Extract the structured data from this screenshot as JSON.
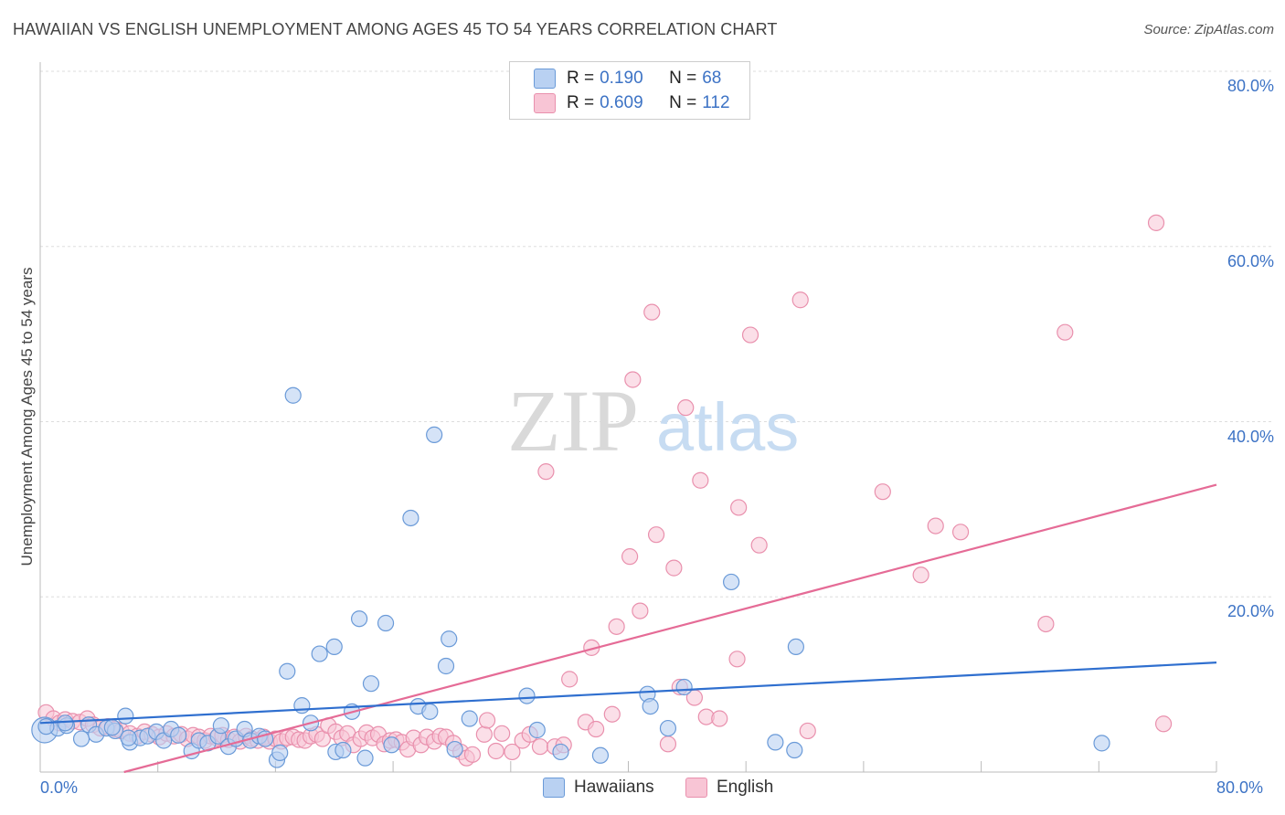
{
  "title": "HAWAIIAN VS ENGLISH UNEMPLOYMENT AMONG AGES 45 TO 54 YEARS CORRELATION CHART",
  "source": "Source: ZipAtlas.com",
  "colors": {
    "hawaiians_fill": "#b9d1f2",
    "hawaiians_stroke": "#6a9ad8",
    "hawaiians_line": "#2f6fcf",
    "english_fill": "#f8c5d5",
    "english_stroke": "#e990ad",
    "english_line": "#e56b96",
    "accent": "#3d73c5"
  },
  "legend": {
    "rows": [
      {
        "r_label": "R =",
        "r_value": "0.190",
        "n_label": "N =",
        "n_value": "68"
      },
      {
        "r_label": "R =",
        "r_value": "0.609",
        "n_label": "N =",
        "n_value": "112"
      }
    ]
  },
  "watermark": {
    "zip": "ZIP",
    "atlas": "atlas"
  },
  "chart_data": {
    "type": "scatter",
    "title": "HAWAIIAN VS ENGLISH UNEMPLOYMENT AMONG AGES 45 TO 54 YEARS CORRELATION CHART",
    "xlabel": "",
    "ylabel": "Unemployment Among Ages 45 to 54 years",
    "xlim": [
      0,
      80
    ],
    "ylim": [
      0,
      80
    ],
    "x_tick_labels": [
      "0.0%",
      "80.0%"
    ],
    "y_tick_labels": [
      "20.0%",
      "40.0%",
      "60.0%",
      "80.0%"
    ],
    "y_ticks": [
      20,
      40,
      60,
      80
    ],
    "grid": true,
    "legend_position": "top-center",
    "series": [
      {
        "name": "Hawaiians",
        "trend": {
          "x": [
            0,
            80
          ],
          "y": [
            5.6,
            12.5
          ]
        },
        "points": [
          [
            0.3,
            4.8
          ],
          [
            1.2,
            5.0
          ],
          [
            1.8,
            5.3
          ],
          [
            2.8,
            3.8
          ],
          [
            3.3,
            5.4
          ],
          [
            3.8,
            4.3
          ],
          [
            4.5,
            5.0
          ],
          [
            5.1,
            4.7
          ],
          [
            5.8,
            6.4
          ],
          [
            6.1,
            3.4
          ],
          [
            6.8,
            3.9
          ],
          [
            7.3,
            4.1
          ],
          [
            7.9,
            4.6
          ],
          [
            8.4,
            3.6
          ],
          [
            8.9,
            4.9
          ],
          [
            9.4,
            4.2
          ],
          [
            10.3,
            2.4
          ],
          [
            10.8,
            3.6
          ],
          [
            11.4,
            3.3
          ],
          [
            12.1,
            4.1
          ],
          [
            12.3,
            5.3
          ],
          [
            12.8,
            2.9
          ],
          [
            13.3,
            3.8
          ],
          [
            13.9,
            4.9
          ],
          [
            14.3,
            3.6
          ],
          [
            14.9,
            4.1
          ],
          [
            15.3,
            3.8
          ],
          [
            16.1,
            1.4
          ],
          [
            16.3,
            2.2
          ],
          [
            16.8,
            11.5
          ],
          [
            17.2,
            43.0
          ],
          [
            17.8,
            7.6
          ],
          [
            18.4,
            5.6
          ],
          [
            19.0,
            13.5
          ],
          [
            20.0,
            14.3
          ],
          [
            20.1,
            2.3
          ],
          [
            20.6,
            2.5
          ],
          [
            21.2,
            6.9
          ],
          [
            21.7,
            17.5
          ],
          [
            22.1,
            1.6
          ],
          [
            22.5,
            10.1
          ],
          [
            23.5,
            17.0
          ],
          [
            23.9,
            3.1
          ],
          [
            25.2,
            29.0
          ],
          [
            25.7,
            7.5
          ],
          [
            26.5,
            6.9
          ],
          [
            26.8,
            38.5
          ],
          [
            27.6,
            12.1
          ],
          [
            27.8,
            15.2
          ],
          [
            28.2,
            2.6
          ],
          [
            29.2,
            6.1
          ],
          [
            33.1,
            8.7
          ],
          [
            33.8,
            4.8
          ],
          [
            35.4,
            2.3
          ],
          [
            38.1,
            1.9
          ],
          [
            41.3,
            8.9
          ],
          [
            41.5,
            7.5
          ],
          [
            42.7,
            5.0
          ],
          [
            43.8,
            9.7
          ],
          [
            47.0,
            21.7
          ],
          [
            50.0,
            3.4
          ],
          [
            51.4,
            14.3
          ],
          [
            51.3,
            2.5
          ],
          [
            72.2,
            3.3
          ],
          [
            0.4,
            5.2
          ],
          [
            1.7,
            5.6
          ],
          [
            4.9,
            5.1
          ],
          [
            6.0,
            3.9
          ]
        ]
      },
      {
        "name": "English",
        "trend": {
          "x": [
            5.7,
            80
          ],
          "y": [
            0.0,
            32.8
          ]
        },
        "points": [
          [
            0.4,
            6.8
          ],
          [
            0.9,
            6.1
          ],
          [
            1.3,
            5.6
          ],
          [
            1.7,
            6.0
          ],
          [
            2.2,
            5.8
          ],
          [
            2.7,
            5.7
          ],
          [
            3.2,
            6.1
          ],
          [
            3.6,
            5.4
          ],
          [
            4.1,
            5.0
          ],
          [
            4.6,
            5.2
          ],
          [
            5.1,
            4.9
          ],
          [
            5.5,
            4.7
          ],
          [
            6.1,
            4.4
          ],
          [
            6.6,
            4.1
          ],
          [
            7.1,
            4.6
          ],
          [
            7.6,
            4.3
          ],
          [
            8.1,
            4.0
          ],
          [
            8.6,
            4.4
          ],
          [
            9.1,
            4.1
          ],
          [
            9.6,
            4.3
          ],
          [
            10.0,
            3.8
          ],
          [
            10.4,
            4.2
          ],
          [
            10.8,
            4.0
          ],
          [
            11.2,
            3.6
          ],
          [
            11.6,
            4.1
          ],
          [
            12.0,
            3.9
          ],
          [
            12.4,
            4.2
          ],
          [
            12.8,
            3.7
          ],
          [
            13.2,
            4.0
          ],
          [
            13.6,
            3.5
          ],
          [
            14.0,
            4.1
          ],
          [
            14.4,
            3.8
          ],
          [
            14.8,
            3.6
          ],
          [
            15.2,
            4.0
          ],
          [
            15.6,
            3.5
          ],
          [
            16.0,
            3.8
          ],
          [
            16.4,
            3.5
          ],
          [
            16.8,
            3.9
          ],
          [
            17.2,
            4.0
          ],
          [
            17.6,
            3.7
          ],
          [
            18.0,
            3.6
          ],
          [
            18.4,
            4.1
          ],
          [
            18.8,
            4.3
          ],
          [
            19.2,
            3.8
          ],
          [
            19.6,
            5.3
          ],
          [
            20.1,
            4.6
          ],
          [
            20.5,
            3.9
          ],
          [
            20.9,
            4.4
          ],
          [
            21.3,
            3.1
          ],
          [
            21.8,
            3.8
          ],
          [
            22.2,
            4.5
          ],
          [
            22.6,
            3.9
          ],
          [
            23.0,
            4.3
          ],
          [
            23.4,
            3.2
          ],
          [
            23.8,
            3.6
          ],
          [
            24.2,
            3.7
          ],
          [
            24.6,
            3.4
          ],
          [
            25.0,
            2.6
          ],
          [
            25.4,
            3.9
          ],
          [
            25.9,
            3.1
          ],
          [
            26.3,
            4.0
          ],
          [
            26.8,
            3.5
          ],
          [
            27.2,
            4.1
          ],
          [
            27.6,
            4.0
          ],
          [
            28.1,
            3.3
          ],
          [
            28.6,
            2.3
          ],
          [
            29.0,
            1.6
          ],
          [
            29.4,
            2.0
          ],
          [
            30.2,
            4.3
          ],
          [
            30.4,
            5.9
          ],
          [
            31.0,
            2.4
          ],
          [
            31.4,
            4.4
          ],
          [
            32.1,
            2.3
          ],
          [
            32.8,
            3.6
          ],
          [
            33.3,
            4.3
          ],
          [
            34.0,
            2.9
          ],
          [
            34.4,
            34.3
          ],
          [
            35.0,
            2.9
          ],
          [
            35.6,
            3.1
          ],
          [
            36.0,
            10.6
          ],
          [
            37.1,
            5.7
          ],
          [
            37.5,
            14.2
          ],
          [
            37.8,
            4.9
          ],
          [
            38.9,
            6.6
          ],
          [
            39.2,
            16.6
          ],
          [
            40.1,
            24.6
          ],
          [
            40.3,
            44.8
          ],
          [
            40.8,
            18.4
          ],
          [
            41.6,
            52.5
          ],
          [
            41.9,
            27.1
          ],
          [
            42.7,
            3.2
          ],
          [
            43.1,
            23.3
          ],
          [
            43.9,
            41.6
          ],
          [
            44.9,
            33.3
          ],
          [
            45.3,
            6.3
          ],
          [
            46.2,
            6.1
          ],
          [
            47.4,
            12.9
          ],
          [
            47.5,
            30.2
          ],
          [
            48.3,
            49.9
          ],
          [
            48.9,
            25.9
          ],
          [
            51.7,
            53.9
          ],
          [
            52.2,
            4.7
          ],
          [
            57.3,
            32.0
          ],
          [
            59.9,
            22.5
          ],
          [
            60.9,
            28.1
          ],
          [
            62.6,
            27.4
          ],
          [
            68.4,
            16.9
          ],
          [
            69.7,
            50.2
          ],
          [
            75.9,
            62.7
          ],
          [
            76.4,
            5.5
          ],
          [
            43.5,
            9.7
          ],
          [
            44.5,
            8.5
          ]
        ]
      }
    ]
  },
  "bottom_legend": {
    "items": [
      "Hawaiians",
      "English"
    ]
  }
}
